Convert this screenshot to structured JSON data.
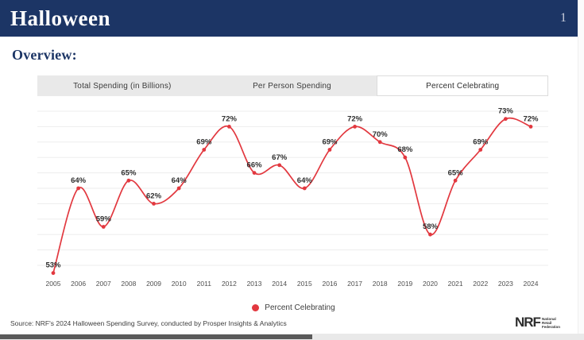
{
  "header": {
    "title": "Halloween",
    "page_number": "1"
  },
  "section_title": "Overview:",
  "tabs": [
    {
      "label": "Total Spending (in Billions)",
      "active": false
    },
    {
      "label": "Per Person Spending",
      "active": false
    },
    {
      "label": "Percent Celebrating",
      "active": true
    }
  ],
  "chart_data": {
    "type": "line",
    "title": "Percent Celebrating",
    "x": [
      2005,
      2006,
      2007,
      2008,
      2009,
      2010,
      2011,
      2012,
      2013,
      2014,
      2015,
      2016,
      2017,
      2018,
      2019,
      2020,
      2021,
      2022,
      2023,
      2024
    ],
    "series": [
      {
        "name": "Percent Celebrating",
        "values": [
          53,
          64,
          59,
          65,
          62,
          64,
          69,
          72,
          66,
          67,
          64,
          69,
          72,
          70,
          68,
          58,
          65,
          69,
          73,
          72
        ]
      }
    ],
    "value_suffix": "%",
    "ylim": [
      53,
      74
    ],
    "gridline_values": [
      54,
      56,
      58,
      60,
      62,
      64,
      66,
      68,
      70,
      72,
      74
    ],
    "grid": true,
    "line_color": "#e2383f",
    "label_color": "#2e2e2e",
    "axis_label_color": "#4f4f4f",
    "gridline_color": "#ededed",
    "legend_label": "Percent Celebrating",
    "legend_position": "bottom"
  },
  "footer": {
    "source": "Source: NRF's 2024 Halloween Spending Survey, conducted by Prosper Insights & Analytics",
    "logo": {
      "word": "NRF",
      "lines": [
        "National",
        "Retail",
        "Federation"
      ]
    }
  }
}
